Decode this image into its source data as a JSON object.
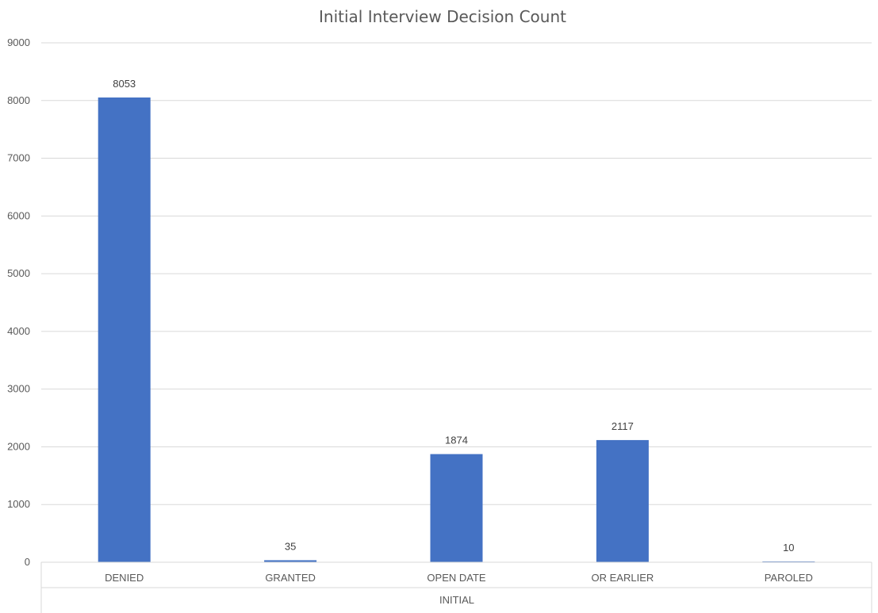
{
  "chart_data": {
    "type": "bar",
    "title": "Initial Interview Decision Count",
    "group_label": "INITIAL",
    "categories": [
      "DENIED",
      "GRANTED",
      "OPEN DATE",
      "OR EARLIER",
      "PAROLED"
    ],
    "series": [
      {
        "values": [
          8053,
          35,
          1874,
          2117,
          10
        ]
      }
    ],
    "data_labels": [
      "8053",
      "35",
      "1874",
      "2117",
      "10"
    ],
    "y_ticks": [
      "0",
      "1000",
      "2000",
      "3000",
      "4000",
      "5000",
      "6000",
      "7000",
      "8000",
      "9000"
    ],
    "ylim": [
      0,
      9000
    ],
    "grid": true,
    "legend": "none",
    "colors": {
      "bar": "#4472C4",
      "grid": "#D9D9D9",
      "text": "#595959"
    }
  }
}
